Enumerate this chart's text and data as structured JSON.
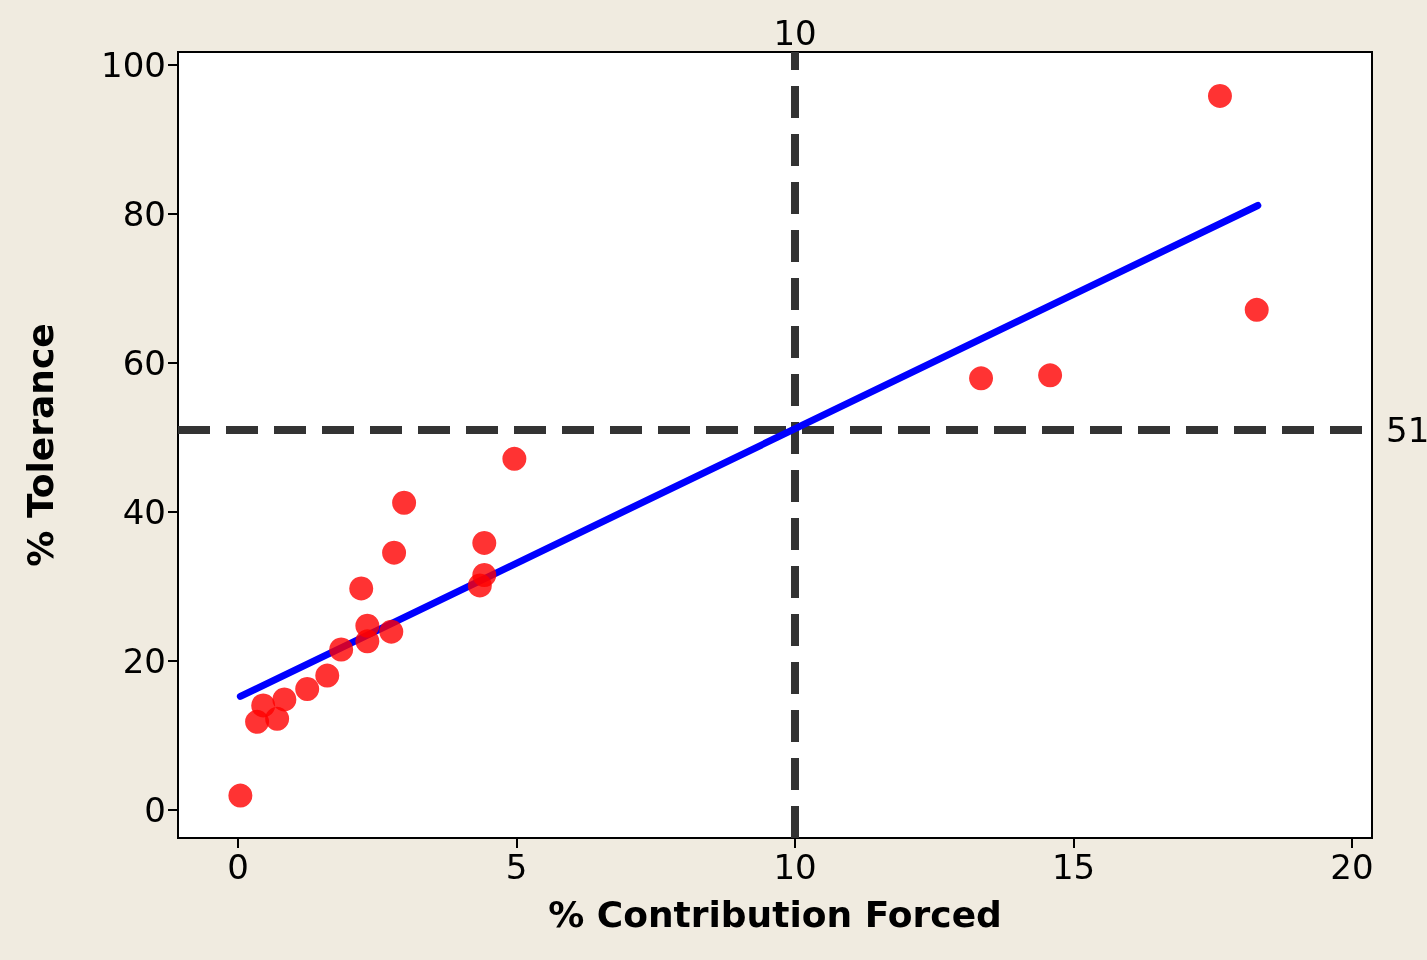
{
  "chart_data": {
    "type": "scatter",
    "xlabel": "% Contribution Forced",
    "ylabel": "% Tolerance",
    "xlim": [
      -1.08,
      20.36
    ],
    "ylim": [
      -3.8,
      101.7
    ],
    "xticks": [
      0,
      5,
      10,
      15,
      20
    ],
    "yticks": [
      0,
      20,
      40,
      60,
      80,
      100
    ],
    "grid": false,
    "marker": "circle",
    "series": [
      {
        "color": "#ff0000",
        "x": [
          0.04,
          0.34,
          0.45,
          0.7,
          0.83,
          1.24,
          1.6,
          1.85,
          2.21,
          2.32,
          2.32,
          2.75,
          2.8,
          2.98,
          4.34,
          4.42,
          4.42,
          4.96,
          13.34,
          14.58,
          17.63,
          18.29
        ],
        "values": [
          1.9,
          11.8,
          14.0,
          12.2,
          14.8,
          16.2,
          18.0,
          21.5,
          29.7,
          24.7,
          22.6,
          23.9,
          34.5,
          41.2,
          30.1,
          31.5,
          35.8,
          47.1,
          57.9,
          58.3,
          95.8,
          67.1
        ]
      },
      {
        "type": "line",
        "color": "#0000ff",
        "marker": "none",
        "line_style": "solid",
        "x": [
          0.04,
          18.31
        ],
        "values": [
          15.2,
          81.1
        ]
      }
    ],
    "ref_lines": [
      {
        "axis": "x",
        "value": 10,
        "label": "10",
        "color": "#333333",
        "line_style": "dashed"
      },
      {
        "axis": "y",
        "value": 51,
        "label": "51",
        "color": "#333333",
        "line_style": "dashed"
      }
    ]
  }
}
